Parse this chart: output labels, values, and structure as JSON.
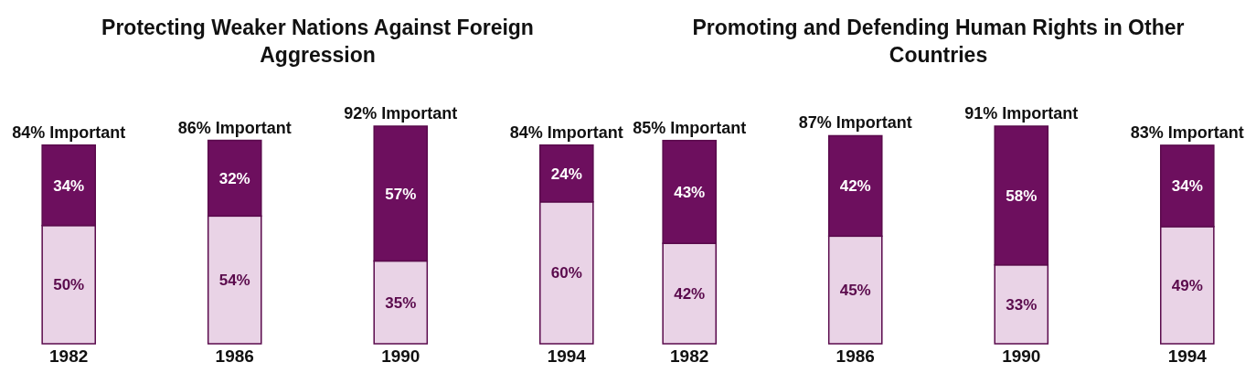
{
  "chart_data": [
    {
      "type": "bar",
      "title": "Protecting Weaker Nations Against Foreign Aggression",
      "categories": [
        "1982",
        "1986",
        "1990",
        "1994"
      ],
      "stacked": true,
      "tick_labels": "x",
      "totals": [
        "84% Important",
        "86% Important",
        "92% Important",
        "84% Important"
      ],
      "series": [
        {
          "color": "#e9d3e6",
          "values": [
            50,
            54,
            35,
            60
          ],
          "value_labels": [
            "50%",
            "54%",
            "35%",
            "60%"
          ]
        },
        {
          "color": "#6d0f5e",
          "values": [
            34,
            32,
            57,
            24
          ],
          "value_labels": [
            "34%",
            "32%",
            "57%",
            "24%"
          ]
        }
      ]
    },
    {
      "type": "bar",
      "title": "Promoting and Defending Human Rights in Other Countries",
      "categories": [
        "1982",
        "1986",
        "1990",
        "1994"
      ],
      "stacked": true,
      "tick_labels": "x",
      "totals": [
        "85% Important",
        "87% Important",
        "91% Important",
        "83% Important"
      ],
      "series": [
        {
          "color": "#e9d3e6",
          "values": [
            42,
            45,
            33,
            49
          ],
          "value_labels": [
            "42%",
            "45%",
            "33%",
            "49%"
          ]
        },
        {
          "color": "#6d0f5e",
          "values": [
            43,
            42,
            58,
            34
          ],
          "value_labels": [
            "43%",
            "42%",
            "58%",
            "34%"
          ]
        }
      ]
    }
  ]
}
